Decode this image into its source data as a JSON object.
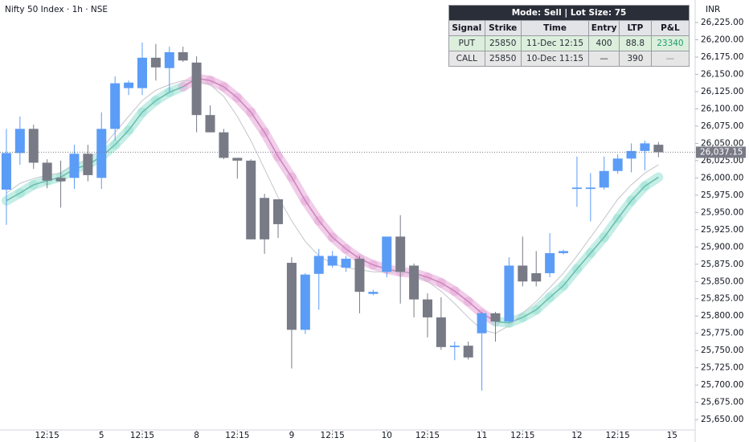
{
  "chart_data": {
    "type": "candlestick",
    "title": "Nifty 50 Index · 1h · NSE",
    "currency": "INR",
    "x": [
      0,
      1,
      2,
      3,
      4,
      5,
      6,
      7,
      8,
      9,
      10,
      11,
      12,
      13,
      14,
      15,
      16,
      17,
      18,
      19,
      20,
      21,
      22,
      23,
      24,
      25,
      26,
      27,
      28,
      29,
      30,
      31,
      32,
      33,
      34,
      35,
      36,
      37,
      38,
      39,
      40,
      41,
      42,
      43,
      44,
      45,
      46,
      47,
      48
    ],
    "open": [
      25983,
      26036,
      26071,
      26022,
      26000,
      26000,
      26035,
      26000,
      26071,
      26130,
      26130,
      26174,
      26159,
      26182,
      26167,
      26091,
      26066,
      26029,
      26025,
      25971,
      25969,
      25877,
      25780,
      25861,
      25873,
      25870,
      25883,
      25832,
      25864,
      25915,
      25873,
      25824,
      25798,
      25755,
      25757,
      25775,
      25804,
      25792,
      25873,
      25862,
      25862,
      25891,
      25984,
      25984,
      25986,
      26010,
      26028,
      26039,
      26048
    ],
    "high": [
      26071,
      26089,
      26077,
      26027,
      26025,
      26048,
      26048,
      26095,
      26147,
      26141,
      26196,
      26194,
      26190,
      26190,
      26176,
      26105,
      26071,
      26029,
      26027,
      25977,
      25969,
      25885,
      25862,
      25897,
      25894,
      25887,
      25887,
      25838,
      25915,
      25946,
      25876,
      25833,
      25827,
      25763,
      25763,
      25806,
      25806,
      25885,
      25915,
      25894,
      25920,
      25896,
      26031,
      26007,
      26031,
      26034,
      26050,
      26054,
      26052
    ],
    "low": [
      25932,
      26019,
      26013,
      25985,
      25957,
      25984,
      25995,
      25984,
      26054,
      26120,
      26120,
      26141,
      26124,
      26168,
      26066,
      26066,
      26027,
      25999,
      25911,
      25890,
      25913,
      25724,
      25774,
      25809,
      25870,
      25864,
      25804,
      25830,
      25856,
      25818,
      25798,
      25769,
      25751,
      25736,
      25737,
      25692,
      25763,
      25790,
      25843,
      25843,
      25856,
      25889,
      25958,
      25937,
      25983,
      26006,
      26008,
      26011,
      26030
    ],
    "close": [
      26036,
      26071,
      26022,
      25996,
      25995,
      26035,
      26004,
      26071,
      26137,
      26138,
      26174,
      26160,
      26182,
      26170,
      26091,
      26066,
      26029,
      26025,
      25911,
      25911,
      25933,
      25780,
      25860,
      25887,
      25887,
      25883,
      25835,
      25835,
      25915,
      25864,
      25824,
      25798,
      25755,
      25757,
      25740,
      25804,
      25792,
      25873,
      25850,
      25850,
      25891,
      25894,
      25986,
      25986,
      26010,
      26028,
      26039,
      26050,
      26037.15
    ],
    "up_color": "#5b9cf6",
    "down_color": "#787b86",
    "trend_band": {
      "values": [
        25967,
        25978,
        25990,
        25996,
        26001,
        26013,
        26019,
        26031,
        26048,
        26069,
        26095,
        26112,
        26124,
        26132,
        26144,
        26141,
        26132,
        26116,
        26095,
        26066,
        26031,
        26001,
        25967,
        25938,
        25914,
        25897,
        25883,
        25874,
        25868,
        25864,
        25862,
        25856,
        25848,
        25836,
        25821,
        25804,
        25792,
        25790,
        25798,
        25809,
        25827,
        25844,
        25868,
        25891,
        25914,
        25941,
        25967,
        25988,
        26001
      ],
      "colors": [
        "#9fe3d6",
        "#9fe3d6",
        "#9fe3d6",
        "#9fe3d6",
        "#9fe3d6",
        "#9fe3d6",
        "#9fe3d6",
        "#9fe3d6",
        "#9fe3d6",
        "#9fe3d6",
        "#9fe3d6",
        "#9fe3d6",
        "#9fe3d6",
        "#9fe3d6",
        "#e8addb",
        "#e8addb",
        "#e8addb",
        "#e8addb",
        "#e8addb",
        "#e8addb",
        "#e8addb",
        "#e8addb",
        "#e8addb",
        "#e8addb",
        "#e8addb",
        "#e8addb",
        "#e8addb",
        "#e8addb",
        "#e8addb",
        "#e8addb",
        "#e8addb",
        "#e8addb",
        "#e8addb",
        "#e8addb",
        "#e8addb",
        "#e8addb",
        "#e8addb",
        "#9fe3d6",
        "#9fe3d6",
        "#9fe3d6",
        "#9fe3d6",
        "#9fe3d6",
        "#9fe3d6",
        "#9fe3d6",
        "#9fe3d6",
        "#9fe3d6",
        "#9fe3d6",
        "#9fe3d6",
        "#9fe3d6"
      ]
    },
    "average_line": {
      "color": "#c3c5cc",
      "values": [
        25978,
        25992,
        25999,
        26004,
        26007,
        26019,
        26027,
        26042,
        26066,
        26089,
        26112,
        26127,
        26135,
        26141,
        26141,
        26135,
        26118,
        26089,
        26054,
        26013,
        25972,
        25938,
        25908,
        25887,
        25876,
        25870,
        25867,
        25864,
        25864,
        25864,
        25860,
        25850,
        25836,
        25818,
        25798,
        25780,
        25775,
        25786,
        25804,
        25821,
        25841,
        25862,
        25887,
        25914,
        25941,
        25969,
        25990,
        26007,
        26019
      ]
    },
    "last_price": {
      "value": 26037.15,
      "label": "26,037.15"
    },
    "xlim": [
      -0.47,
      50.7
    ],
    "xticks": [
      {
        "value": 3,
        "label": "12:15"
      },
      {
        "value": 7,
        "label": "5"
      },
      {
        "value": 10,
        "label": "12:15"
      },
      {
        "value": 14,
        "label": "8"
      },
      {
        "value": 17,
        "label": "12:15"
      },
      {
        "value": 21,
        "label": "9"
      },
      {
        "value": 24,
        "label": "12:15"
      },
      {
        "value": 28,
        "label": "10"
      },
      {
        "value": 31,
        "label": "12:15"
      },
      {
        "value": 35,
        "label": "11"
      },
      {
        "value": 38,
        "label": "12:15"
      },
      {
        "value": 42,
        "label": "12"
      },
      {
        "value": 45,
        "label": "12:15"
      },
      {
        "value": 49,
        "label": "15"
      }
    ],
    "ylim": [
      25635,
      26257.6
    ],
    "yticks": [
      {
        "value": 25650,
        "label": "25,650.00"
      },
      {
        "value": 25675,
        "label": "25,675.00"
      },
      {
        "value": 25700,
        "label": "25,700.00"
      },
      {
        "value": 25725,
        "label": "25,725.00"
      },
      {
        "value": 25750,
        "label": "25,750.00"
      },
      {
        "value": 25775,
        "label": "25,775.00"
      },
      {
        "value": 25800,
        "label": "25,800.00"
      },
      {
        "value": 25825,
        "label": "25,825.00"
      },
      {
        "value": 25850,
        "label": "25,850.00"
      },
      {
        "value": 25875,
        "label": "25,875.00"
      },
      {
        "value": 25900,
        "label": "25,900.00"
      },
      {
        "value": 25925,
        "label": "25,925.00"
      },
      {
        "value": 25950,
        "label": "25,950.00"
      },
      {
        "value": 25975,
        "label": "25,975.00"
      },
      {
        "value": 26000,
        "label": "26,000.00"
      },
      {
        "value": 26025,
        "label": "26,025.00"
      },
      {
        "value": 26050,
        "label": "26,050.00"
      },
      {
        "value": 26075,
        "label": "26,075.00"
      },
      {
        "value": 26100,
        "label": "26,100.00"
      },
      {
        "value": 26125,
        "label": "26,125.00"
      },
      {
        "value": 26150,
        "label": "26,150.00"
      },
      {
        "value": 26175,
        "label": "26,175.00"
      },
      {
        "value": 26200,
        "label": "26,200.00"
      },
      {
        "value": 26225,
        "label": "26,225.00"
      }
    ],
    "grid": false
  },
  "table": {
    "title": "Mode: Sell | Lot Size: 75",
    "columns": [
      "Signal",
      "Strike",
      "Time",
      "Entry",
      "LTP",
      "P&L"
    ],
    "rows": [
      [
        "PUT",
        "25850",
        "11-Dec 12:15",
        "400",
        "88.8",
        "23340"
      ],
      [
        "CALL",
        "25850",
        "10-Dec 11:15",
        "—",
        "390",
        "—"
      ]
    ],
    "row_colors": [
      "#dcefdc",
      "#e6e6e6"
    ],
    "pnl_color": "#1e9e6e"
  }
}
